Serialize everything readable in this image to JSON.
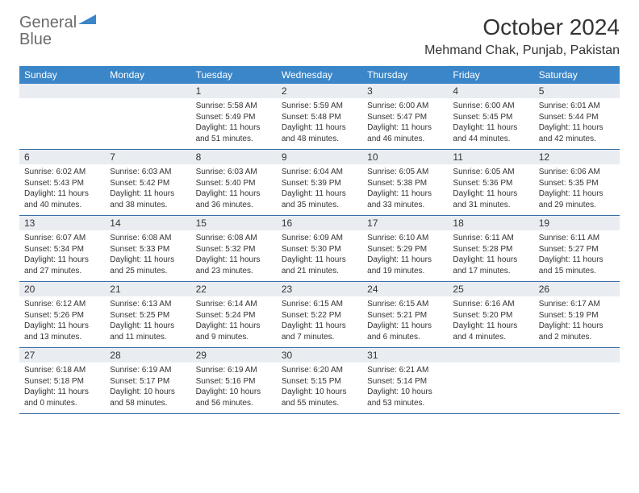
{
  "brand": {
    "word1": "General",
    "word2": "Blue",
    "shape_color": "#3a86c8",
    "text_gray": "#6a6a6a"
  },
  "title": "October 2024",
  "location": "Mehmand Chak, Punjab, Pakistan",
  "colors": {
    "header_bg": "#3a86c8",
    "header_text": "#ffffff",
    "daynum_bg": "#e9edf1",
    "week_divider": "#3a6fa5",
    "body_text": "#333333",
    "page_bg": "#ffffff"
  },
  "weekdays": [
    "Sunday",
    "Monday",
    "Tuesday",
    "Wednesday",
    "Thursday",
    "Friday",
    "Saturday"
  ],
  "weeks": [
    [
      {
        "n": "",
        "sr": "",
        "ss": "",
        "dl": ""
      },
      {
        "n": "",
        "sr": "",
        "ss": "",
        "dl": ""
      },
      {
        "n": "1",
        "sr": "Sunrise: 5:58 AM",
        "ss": "Sunset: 5:49 PM",
        "dl": "Daylight: 11 hours and 51 minutes."
      },
      {
        "n": "2",
        "sr": "Sunrise: 5:59 AM",
        "ss": "Sunset: 5:48 PM",
        "dl": "Daylight: 11 hours and 48 minutes."
      },
      {
        "n": "3",
        "sr": "Sunrise: 6:00 AM",
        "ss": "Sunset: 5:47 PM",
        "dl": "Daylight: 11 hours and 46 minutes."
      },
      {
        "n": "4",
        "sr": "Sunrise: 6:00 AM",
        "ss": "Sunset: 5:45 PM",
        "dl": "Daylight: 11 hours and 44 minutes."
      },
      {
        "n": "5",
        "sr": "Sunrise: 6:01 AM",
        "ss": "Sunset: 5:44 PM",
        "dl": "Daylight: 11 hours and 42 minutes."
      }
    ],
    [
      {
        "n": "6",
        "sr": "Sunrise: 6:02 AM",
        "ss": "Sunset: 5:43 PM",
        "dl": "Daylight: 11 hours and 40 minutes."
      },
      {
        "n": "7",
        "sr": "Sunrise: 6:03 AM",
        "ss": "Sunset: 5:42 PM",
        "dl": "Daylight: 11 hours and 38 minutes."
      },
      {
        "n": "8",
        "sr": "Sunrise: 6:03 AM",
        "ss": "Sunset: 5:40 PM",
        "dl": "Daylight: 11 hours and 36 minutes."
      },
      {
        "n": "9",
        "sr": "Sunrise: 6:04 AM",
        "ss": "Sunset: 5:39 PM",
        "dl": "Daylight: 11 hours and 35 minutes."
      },
      {
        "n": "10",
        "sr": "Sunrise: 6:05 AM",
        "ss": "Sunset: 5:38 PM",
        "dl": "Daylight: 11 hours and 33 minutes."
      },
      {
        "n": "11",
        "sr": "Sunrise: 6:05 AM",
        "ss": "Sunset: 5:36 PM",
        "dl": "Daylight: 11 hours and 31 minutes."
      },
      {
        "n": "12",
        "sr": "Sunrise: 6:06 AM",
        "ss": "Sunset: 5:35 PM",
        "dl": "Daylight: 11 hours and 29 minutes."
      }
    ],
    [
      {
        "n": "13",
        "sr": "Sunrise: 6:07 AM",
        "ss": "Sunset: 5:34 PM",
        "dl": "Daylight: 11 hours and 27 minutes."
      },
      {
        "n": "14",
        "sr": "Sunrise: 6:08 AM",
        "ss": "Sunset: 5:33 PM",
        "dl": "Daylight: 11 hours and 25 minutes."
      },
      {
        "n": "15",
        "sr": "Sunrise: 6:08 AM",
        "ss": "Sunset: 5:32 PM",
        "dl": "Daylight: 11 hours and 23 minutes."
      },
      {
        "n": "16",
        "sr": "Sunrise: 6:09 AM",
        "ss": "Sunset: 5:30 PM",
        "dl": "Daylight: 11 hours and 21 minutes."
      },
      {
        "n": "17",
        "sr": "Sunrise: 6:10 AM",
        "ss": "Sunset: 5:29 PM",
        "dl": "Daylight: 11 hours and 19 minutes."
      },
      {
        "n": "18",
        "sr": "Sunrise: 6:11 AM",
        "ss": "Sunset: 5:28 PM",
        "dl": "Daylight: 11 hours and 17 minutes."
      },
      {
        "n": "19",
        "sr": "Sunrise: 6:11 AM",
        "ss": "Sunset: 5:27 PM",
        "dl": "Daylight: 11 hours and 15 minutes."
      }
    ],
    [
      {
        "n": "20",
        "sr": "Sunrise: 6:12 AM",
        "ss": "Sunset: 5:26 PM",
        "dl": "Daylight: 11 hours and 13 minutes."
      },
      {
        "n": "21",
        "sr": "Sunrise: 6:13 AM",
        "ss": "Sunset: 5:25 PM",
        "dl": "Daylight: 11 hours and 11 minutes."
      },
      {
        "n": "22",
        "sr": "Sunrise: 6:14 AM",
        "ss": "Sunset: 5:24 PM",
        "dl": "Daylight: 11 hours and 9 minutes."
      },
      {
        "n": "23",
        "sr": "Sunrise: 6:15 AM",
        "ss": "Sunset: 5:22 PM",
        "dl": "Daylight: 11 hours and 7 minutes."
      },
      {
        "n": "24",
        "sr": "Sunrise: 6:15 AM",
        "ss": "Sunset: 5:21 PM",
        "dl": "Daylight: 11 hours and 6 minutes."
      },
      {
        "n": "25",
        "sr": "Sunrise: 6:16 AM",
        "ss": "Sunset: 5:20 PM",
        "dl": "Daylight: 11 hours and 4 minutes."
      },
      {
        "n": "26",
        "sr": "Sunrise: 6:17 AM",
        "ss": "Sunset: 5:19 PM",
        "dl": "Daylight: 11 hours and 2 minutes."
      }
    ],
    [
      {
        "n": "27",
        "sr": "Sunrise: 6:18 AM",
        "ss": "Sunset: 5:18 PM",
        "dl": "Daylight: 11 hours and 0 minutes."
      },
      {
        "n": "28",
        "sr": "Sunrise: 6:19 AM",
        "ss": "Sunset: 5:17 PM",
        "dl": "Daylight: 10 hours and 58 minutes."
      },
      {
        "n": "29",
        "sr": "Sunrise: 6:19 AM",
        "ss": "Sunset: 5:16 PM",
        "dl": "Daylight: 10 hours and 56 minutes."
      },
      {
        "n": "30",
        "sr": "Sunrise: 6:20 AM",
        "ss": "Sunset: 5:15 PM",
        "dl": "Daylight: 10 hours and 55 minutes."
      },
      {
        "n": "31",
        "sr": "Sunrise: 6:21 AM",
        "ss": "Sunset: 5:14 PM",
        "dl": "Daylight: 10 hours and 53 minutes."
      },
      {
        "n": "",
        "sr": "",
        "ss": "",
        "dl": ""
      },
      {
        "n": "",
        "sr": "",
        "ss": "",
        "dl": ""
      }
    ]
  ]
}
